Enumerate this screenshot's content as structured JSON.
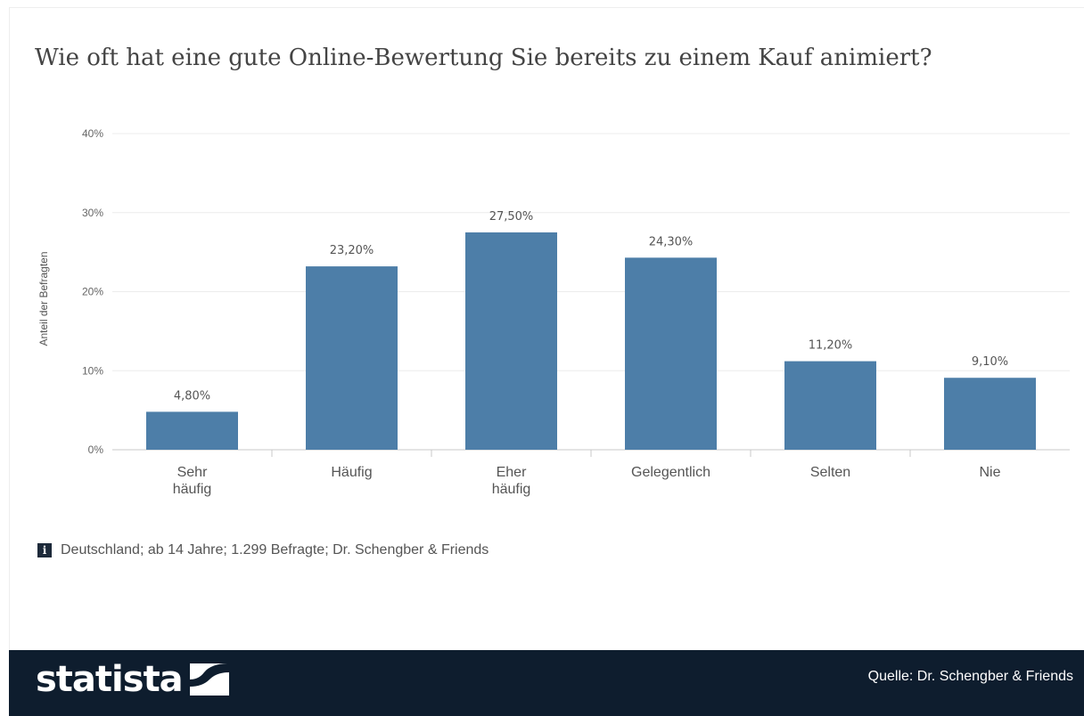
{
  "title": "Wie oft hat eine gute Online-Bewertung Sie bereits zu einem Kauf animiert?",
  "footnote": {
    "icon": "info-icon",
    "text": "Deutschland; ab 14 Jahre; 1.299 Befragte; Dr. Schengber & Friends"
  },
  "footer": {
    "brand": "statista",
    "logo_icon": "statista-logo-icon",
    "source": "Quelle: Dr. Schengber & Friends"
  },
  "colors": {
    "bar": "#4d7ea8",
    "footer_bg": "#0e1d2e",
    "title": "#444444"
  },
  "chart_data": {
    "type": "bar",
    "title": "Wie oft hat eine gute Online-Bewertung Sie bereits zu einem Kauf animiert?",
    "xlabel": "",
    "ylabel": "Anteil der Befragten",
    "categories": [
      "Sehr häufig",
      "Häufig",
      "Eher häufig",
      "Gelegentlich",
      "Selten",
      "Nie"
    ],
    "category_lines": [
      [
        "Sehr",
        "häufig"
      ],
      [
        "Häufig"
      ],
      [
        "Eher",
        "häufig"
      ],
      [
        "Gelegentlich"
      ],
      [
        "Selten"
      ],
      [
        "Nie"
      ]
    ],
    "values": [
      4.8,
      23.2,
      27.5,
      24.3,
      11.2,
      9.1
    ],
    "value_labels": [
      "4,80%",
      "23,20%",
      "27,50%",
      "24,30%",
      "11,20%",
      "9,10%"
    ],
    "ylim": [
      0,
      40
    ],
    "yticks": [
      0,
      10,
      20,
      30,
      40
    ],
    "ytick_labels": [
      "0%",
      "10%",
      "20%",
      "30%",
      "40%"
    ],
    "grid": true,
    "legend": "none"
  }
}
